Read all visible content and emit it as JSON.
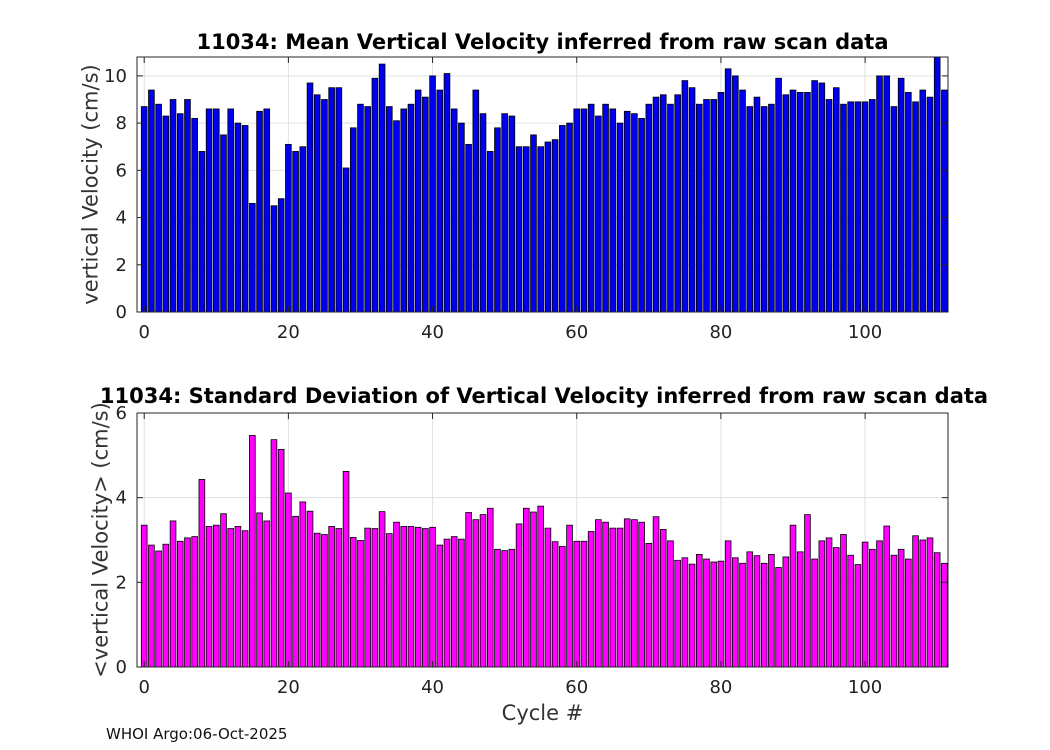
{
  "chart_data": [
    {
      "type": "bar",
      "title": "11034: Mean Vertical Velocity inferred from raw scan data",
      "xlabel": "",
      "ylabel": "vertical Velocity (cm/s)",
      "xlim": [
        -1,
        111.5
      ],
      "ylim": [
        0,
        10.8
      ],
      "xticks": [
        0,
        20,
        40,
        60,
        80,
        100
      ],
      "yticks": [
        0,
        2,
        4,
        6,
        8,
        10
      ],
      "grid": true,
      "bar_color": "#0000ee",
      "cycle_start": 0,
      "values": [
        8.7,
        9.4,
        8.8,
        8.3,
        9.0,
        8.4,
        9.0,
        8.2,
        6.8,
        8.6,
        8.6,
        7.5,
        8.6,
        8.0,
        7.9,
        4.6,
        8.5,
        8.6,
        4.5,
        4.8,
        7.1,
        6.8,
        7.0,
        9.7,
        9.2,
        9.0,
        9.5,
        9.5,
        6.1,
        7.8,
        8.8,
        8.7,
        9.9,
        10.5,
        8.7,
        8.1,
        8.6,
        8.8,
        9.4,
        9.1,
        10.0,
        9.4,
        10.1,
        8.6,
        8.0,
        7.1,
        9.4,
        8.4,
        6.8,
        7.8,
        8.4,
        8.3,
        7.0,
        7.0,
        7.5,
        7.0,
        7.2,
        7.3,
        7.9,
        8.0,
        8.6,
        8.6,
        8.8,
        8.3,
        8.8,
        8.6,
        8.0,
        8.5,
        8.4,
        8.2,
        8.8,
        9.1,
        9.2,
        8.8,
        9.2,
        9.8,
        9.5,
        8.8,
        9.0,
        9.0,
        9.3,
        10.3,
        10.0,
        9.4,
        8.7,
        9.1,
        8.7,
        8.8,
        9.9,
        9.2,
        9.4,
        9.3,
        9.3,
        9.8,
        9.7,
        9.0,
        9.5,
        8.8,
        8.9,
        8.9,
        8.9,
        9.0,
        10.0,
        10.0,
        8.7,
        9.9,
        9.3,
        8.9,
        9.4,
        9.1,
        10.8,
        9.4
      ]
    },
    {
      "type": "bar",
      "title": "11034: Standard Deviation of Vertical Velocity inferred from raw scan data",
      "xlabel": "Cycle #",
      "ylabel": "<vertical Velocity> (cm/s)",
      "xlim": [
        -1,
        111.5
      ],
      "ylim": [
        0,
        6
      ],
      "xticks": [
        0,
        20,
        40,
        60,
        80,
        100
      ],
      "yticks": [
        0,
        2,
        4,
        6
      ],
      "grid": true,
      "bar_color": "#ff00ff",
      "cycle_start": 0,
      "values": [
        3.35,
        2.88,
        2.74,
        2.9,
        3.45,
        2.97,
        3.05,
        3.08,
        4.43,
        3.32,
        3.35,
        3.62,
        3.27,
        3.32,
        3.22,
        5.47,
        3.64,
        3.45,
        5.37,
        5.14,
        4.11,
        3.56,
        3.9,
        3.68,
        3.16,
        3.13,
        3.32,
        3.27,
        4.62,
        3.06,
        2.99,
        3.28,
        3.27,
        3.67,
        3.15,
        3.42,
        3.32,
        3.32,
        3.3,
        3.27,
        3.3,
        2.88,
        3.02,
        3.08,
        3.02,
        3.65,
        3.48,
        3.6,
        3.75,
        2.78,
        2.75,
        2.78,
        3.38,
        3.75,
        3.66,
        3.8,
        3.28,
        2.96,
        2.85,
        3.35,
        2.97,
        2.97,
        3.2,
        3.48,
        3.42,
        3.28,
        3.28,
        3.5,
        3.48,
        3.42,
        2.92,
        3.55,
        3.25,
        2.98,
        2.52,
        2.58,
        2.43,
        2.66,
        2.55,
        2.48,
        2.5,
        2.98,
        2.58,
        2.45,
        2.72,
        2.63,
        2.45,
        2.66,
        2.35,
        2.6,
        3.35,
        2.72,
        3.6,
        2.55,
        2.98,
        3.05,
        2.82,
        3.13,
        2.64,
        2.42,
        2.95,
        2.78,
        2.98,
        3.33,
        2.64,
        2.78,
        2.55,
        3.1,
        3.0,
        3.05,
        2.7,
        2.45
      ]
    }
  ],
  "footer": "WHOI Argo:06-Oct-2025"
}
